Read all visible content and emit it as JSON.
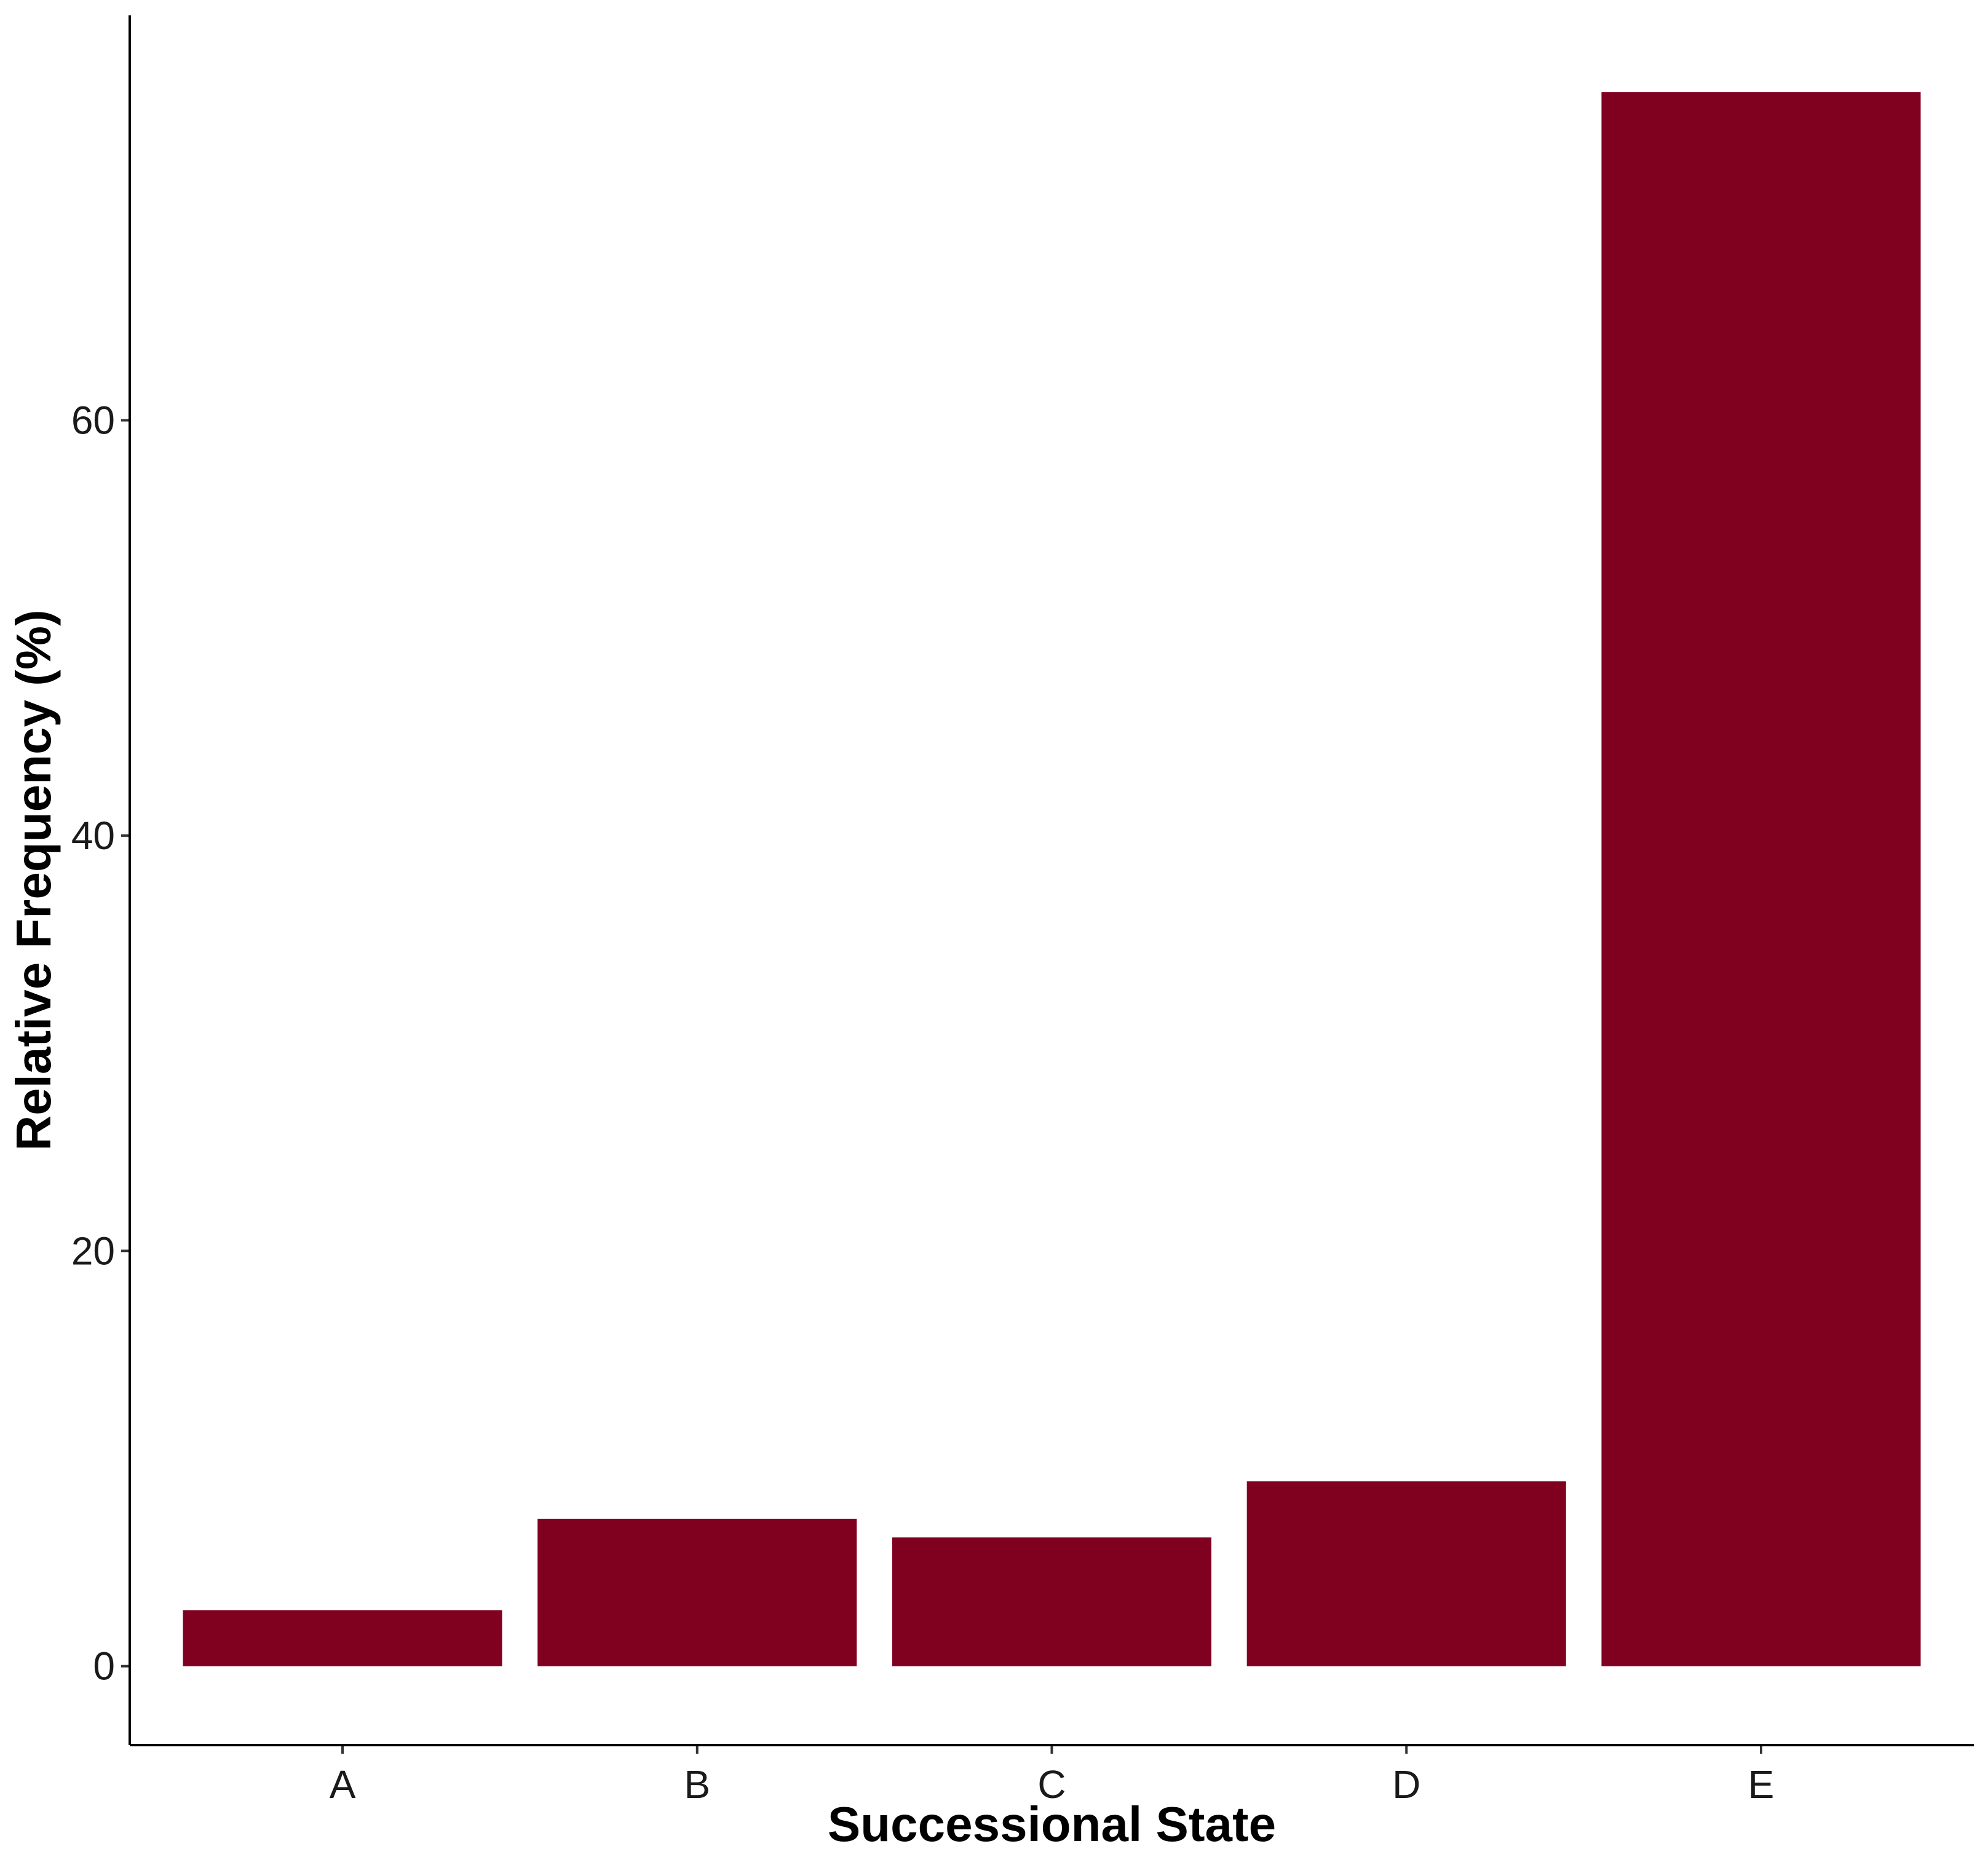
{
  "chart_data": {
    "type": "bar",
    "title": "",
    "xlabel": "Successional State",
    "ylabel": "Relative Frequency (%)",
    "categories": [
      "A",
      "B",
      "C",
      "D",
      "E"
    ],
    "values": [
      2.7,
      7.1,
      6.2,
      8.9,
      75.8
    ],
    "ylim": [
      -3.8,
      79.5
    ],
    "yticks": [
      0,
      20,
      40,
      60
    ],
    "ytick_labels": [
      "0",
      "20",
      "40",
      "60"
    ],
    "grid": false,
    "legend": "none",
    "bar_color": "#800020",
    "axis_color": "#000000"
  }
}
